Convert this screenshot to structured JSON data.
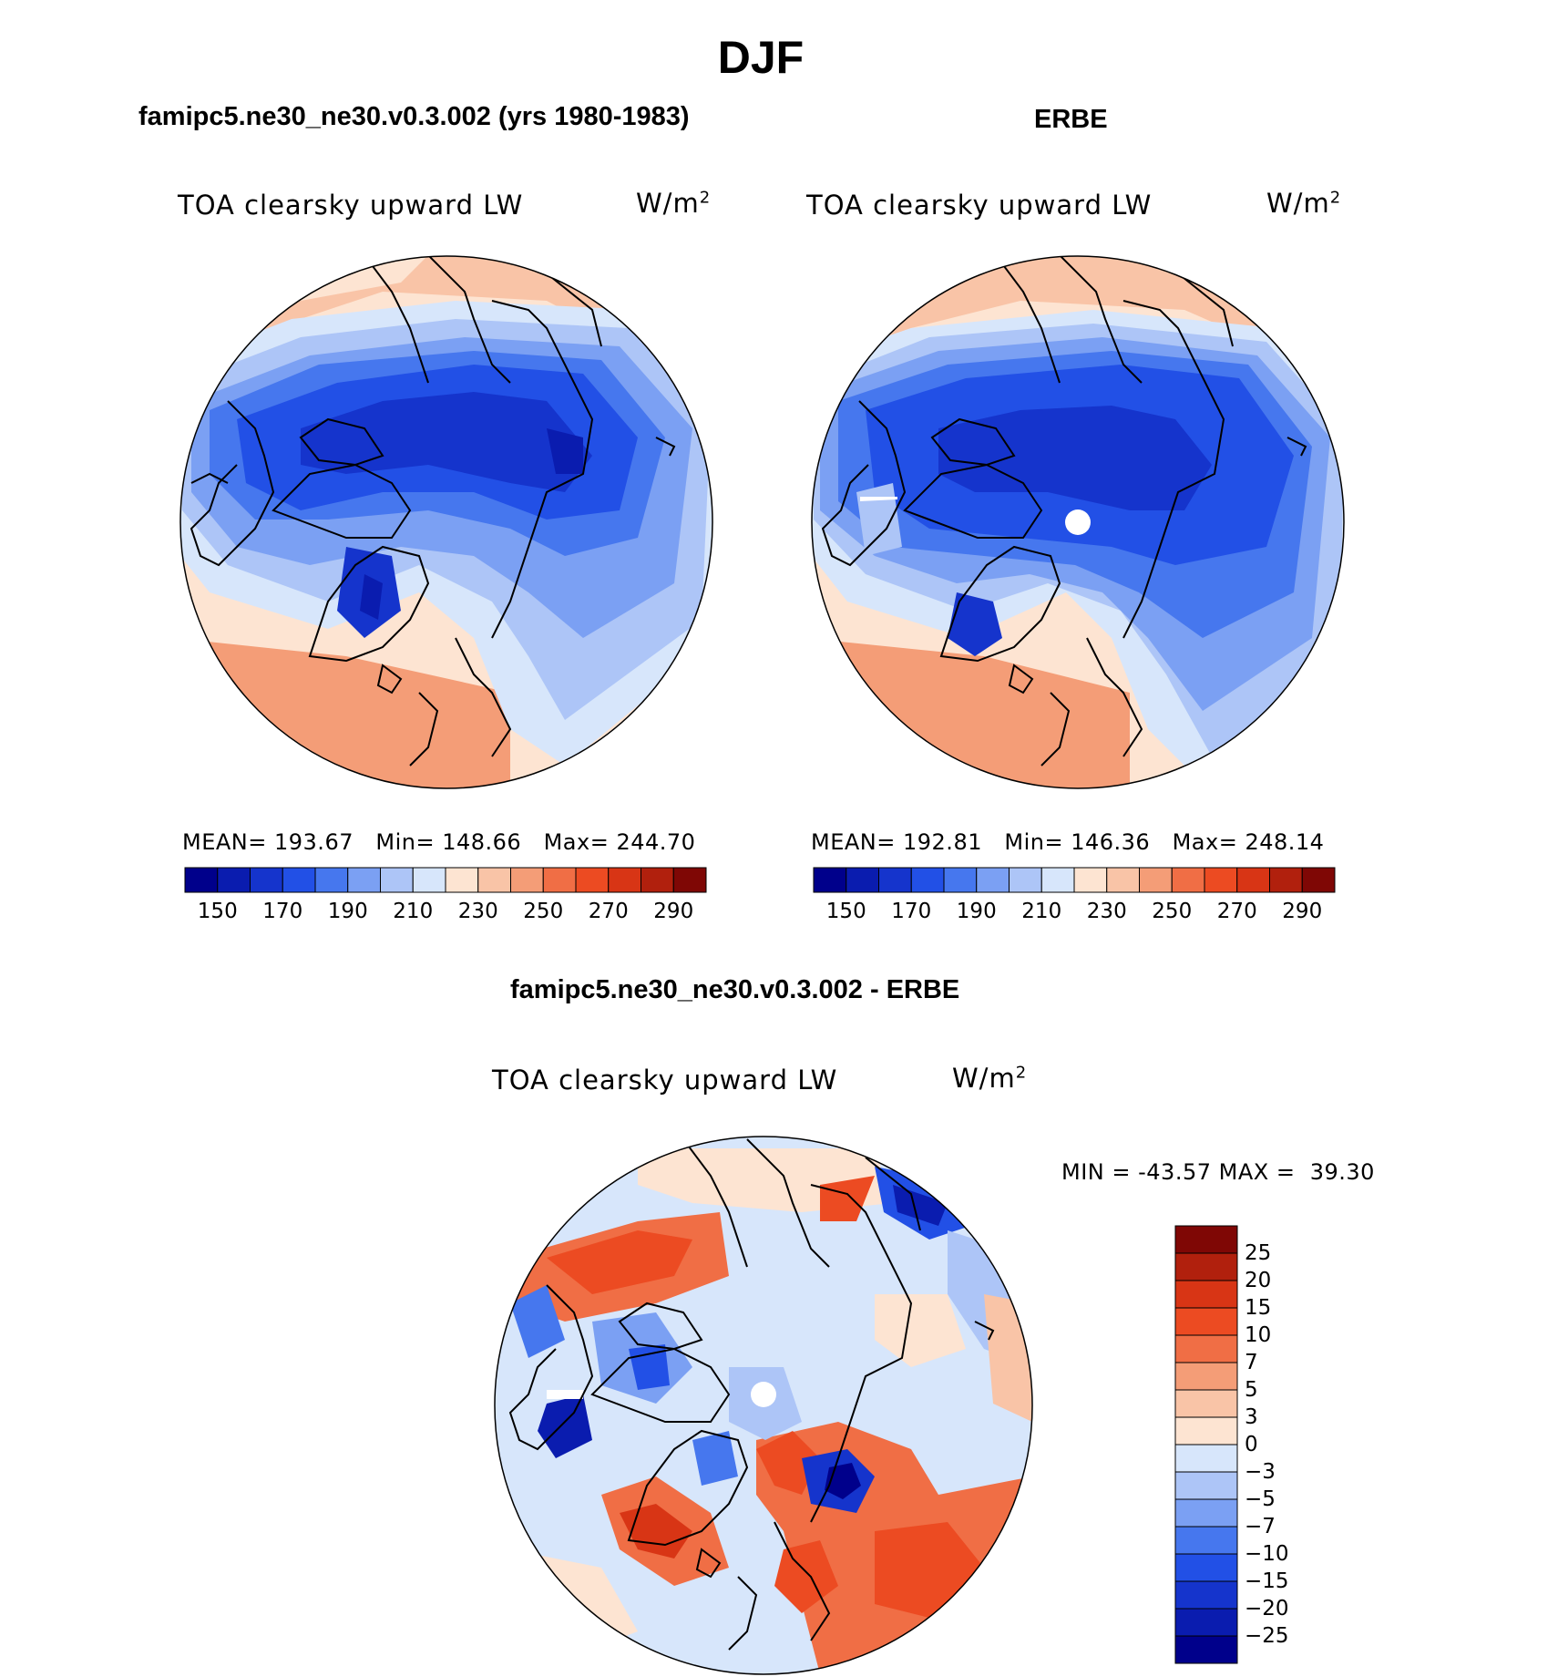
{
  "title": "DJF",
  "units_base": "W/m",
  "units_sup": "2",
  "panels": [
    {
      "heading": "famipc5.ne30_ne30.v0.3.002 (yrs 1980-1983)",
      "variable": "TOA clearsky upward LW",
      "stats": {
        "mean_label": "MEAN=",
        "mean": "193.67",
        "min_label": "Min=",
        "min": "148.66",
        "max_label": "Max=",
        "max": "244.70"
      }
    },
    {
      "heading": "ERBE",
      "variable": "TOA clearsky upward LW",
      "stats": {
        "mean_label": "MEAN=",
        "mean": "192.81",
        "min_label": "Min=",
        "min": "146.36",
        "max_label": "Max=",
        "max": "248.14"
      }
    },
    {
      "heading": "famipc5.ne30_ne30.v0.3.002 - ERBE",
      "variable": "TOA clearsky upward LW",
      "stats": {
        "min_label": "MIN =",
        "min": "-43.57",
        "max_label": "MAX =",
        "max": "39.30"
      }
    }
  ],
  "abs_colorbar": {
    "ticks": [
      "150",
      "170",
      "190",
      "210",
      "230",
      "250",
      "270",
      "290"
    ],
    "colors": [
      "#00008b",
      "#0a1caf",
      "#1534cc",
      "#2250e6",
      "#4677ee",
      "#7ba0f3",
      "#adc5f7",
      "#d7e6fb",
      "#fde4d2",
      "#f9c4a7",
      "#f49d77",
      "#f06e45",
      "#ec4b22",
      "#d83515",
      "#b1200d",
      "#7f0705"
    ]
  },
  "diff_colorbar": {
    "ticks": [
      "25",
      "20",
      "15",
      "10",
      "7",
      "5",
      "3",
      "0",
      "−3",
      "−5",
      "−7",
      "−10",
      "−15",
      "−20",
      "−25"
    ],
    "colors": [
      "#7f0705",
      "#b1200d",
      "#d83515",
      "#ec4b22",
      "#f06e45",
      "#f49d77",
      "#f9c4a7",
      "#fde4d2",
      "#d7e6fb",
      "#adc5f7",
      "#7ba0f3",
      "#4677ee",
      "#2250e6",
      "#1534cc",
      "#0a1caf",
      "#00008b"
    ]
  }
}
